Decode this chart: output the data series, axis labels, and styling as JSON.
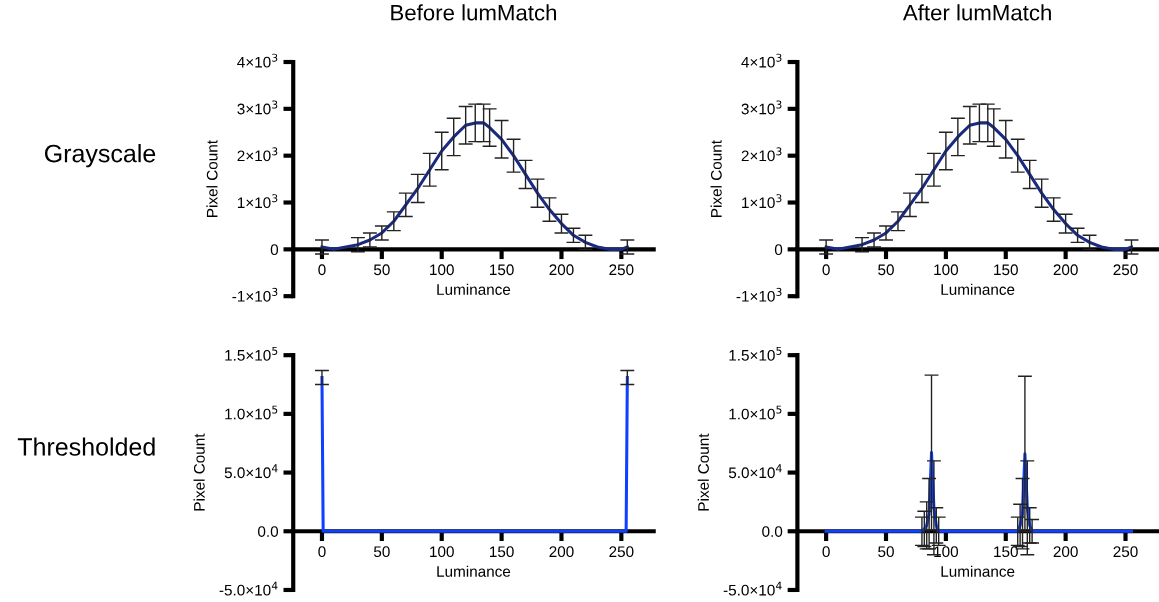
{
  "chart_data": [
    {
      "type": "line",
      "title": "Before lumMatch",
      "annotations": [
        "Grayscale"
      ],
      "xlabel": "Luminance",
      "ylabel": "Pixel Count",
      "xlim": [
        -24,
        277
      ],
      "xticks": [
        0,
        50,
        100,
        150,
        200,
        250
      ],
      "ylim": [
        -1000,
        4000
      ],
      "yticks": [
        {
          "value": -1000,
          "label": "-1×10$^{3}$"
        },
        0,
        {
          "value": 1000,
          "label": "1×10$^{3}$"
        },
        {
          "value": 2000,
          "label": "2×10$^{3}$"
        },
        {
          "value": 3000,
          "label": "3×10$^{3}$"
        },
        {
          "value": 4000,
          "label": "4×10$^{3}$"
        }
      ],
      "grid": false,
      "marker": "none",
      "line_style": "solid",
      "series": [
        {
          "color": "#1a2a80",
          "x": [
            0,
            10,
            20,
            30,
            40,
            50,
            60,
            70,
            80,
            90,
            100,
            110,
            120,
            128,
            135,
            140,
            150,
            160,
            170,
            180,
            190,
            200,
            210,
            220,
            230,
            240,
            250,
            255
          ],
          "values": [
            50,
            0,
            50,
            100,
            200,
            350,
            600,
            950,
            1300,
            1700,
            2100,
            2400,
            2650,
            2700,
            2700,
            2600,
            2350,
            2000,
            1600,
            1200,
            850,
            550,
            300,
            150,
            50,
            0,
            0,
            50
          ],
          "errors": [
            150,
            null,
            null,
            150,
            150,
            150,
            200,
            250,
            300,
            350,
            400,
            400,
            400,
            400,
            400,
            400,
            400,
            350,
            300,
            300,
            250,
            200,
            150,
            150,
            null,
            null,
            null,
            150
          ]
        }
      ]
    },
    {
      "type": "line",
      "title": "After lumMatch",
      "xlabel": "Luminance",
      "ylabel": "Pixel Count",
      "xlim": [
        -24,
        277
      ],
      "xticks": [
        0,
        50,
        100,
        150,
        200,
        250
      ],
      "ylim": [
        -1000,
        4000
      ],
      "yticks": [
        {
          "value": -1000,
          "label": "-1×10$^{3}$"
        },
        0,
        {
          "value": 1000,
          "label": "1×10$^{3}$"
        },
        {
          "value": 2000,
          "label": "2×10$^{3}$"
        },
        {
          "value": 3000,
          "label": "3×10$^{3}$"
        },
        {
          "value": 4000,
          "label": "4×10$^{3}$"
        }
      ],
      "grid": false,
      "marker": "none",
      "line_style": "solid",
      "series": [
        {
          "color": "#1a2a80",
          "x": [
            0,
            10,
            20,
            30,
            40,
            50,
            60,
            70,
            80,
            90,
            100,
            110,
            120,
            128,
            135,
            140,
            150,
            160,
            170,
            180,
            190,
            200,
            210,
            220,
            230,
            240,
            250,
            255
          ],
          "values": [
            50,
            0,
            50,
            100,
            200,
            350,
            600,
            950,
            1300,
            1700,
            2100,
            2400,
            2650,
            2700,
            2700,
            2600,
            2350,
            2000,
            1600,
            1200,
            850,
            550,
            300,
            150,
            50,
            0,
            0,
            50
          ],
          "errors": [
            150,
            null,
            null,
            150,
            150,
            150,
            200,
            250,
            300,
            350,
            400,
            400,
            400,
            400,
            400,
            400,
            400,
            350,
            300,
            300,
            250,
            200,
            150,
            150,
            null,
            null,
            null,
            150
          ]
        }
      ]
    },
    {
      "type": "line",
      "annotations": [
        "Thresholded"
      ],
      "xlabel": "Luminance",
      "ylabel": "Pixel Count",
      "xlim": [
        -24,
        277
      ],
      "xticks": [
        0,
        50,
        100,
        150,
        200,
        250
      ],
      "ylim": [
        -50000,
        150000
      ],
      "yticks": [
        {
          "value": -50000,
          "label": "-5.0×10$^{4}$"
        },
        {
          "value": 0,
          "label": "0.0"
        },
        {
          "value": 50000,
          "label": "5.0×10$^{4}$"
        },
        {
          "value": 100000,
          "label": "1.0×10$^{5}$"
        },
        {
          "value": 150000,
          "label": "1.5×10$^{5}$"
        }
      ],
      "grid": false,
      "marker": "none",
      "line_style": "solid",
      "series": [
        {
          "color": "#1040ff",
          "x": [
            0,
            1,
            50,
            100,
            150,
            200,
            254,
            255
          ],
          "values": [
            131000,
            0,
            0,
            0,
            0,
            0,
            0,
            131000
          ],
          "errors": [
            6000,
            null,
            null,
            null,
            null,
            null,
            null,
            6000
          ]
        }
      ]
    },
    {
      "type": "line",
      "xlabel": "Luminance",
      "ylabel": "Pixel Count",
      "xlim": [
        -24,
        277
      ],
      "xticks": [
        0,
        50,
        100,
        150,
        200,
        250
      ],
      "ylim": [
        -50000,
        150000
      ],
      "yticks": [
        {
          "value": -50000,
          "label": "-5.0×10$^{4}$"
        },
        {
          "value": 0,
          "label": "0.0"
        },
        {
          "value": 50000,
          "label": "5.0×10$^{4}$"
        },
        {
          "value": 100000,
          "label": "1.0×10$^{5}$"
        },
        {
          "value": 150000,
          "label": "1.5×10$^{5}$"
        }
      ],
      "grid": false,
      "marker": "none",
      "line_style": "solid",
      "series": [
        {
          "color": "#1040ff",
          "x": [
            0,
            50,
            80,
            82,
            84,
            86,
            88,
            90,
            92,
            94,
            96,
            120,
            158,
            160,
            162,
            164,
            166,
            168,
            170,
            172,
            200,
            255
          ],
          "values": [
            0,
            0,
            0,
            2000,
            5000,
            15000,
            67000,
            20000,
            5000,
            0,
            0,
            0,
            0,
            0,
            5000,
            15000,
            66000,
            20000,
            5000,
            0,
            0,
            0
          ],
          "errors": [
            null,
            null,
            12000,
            15000,
            20000,
            30000,
            66000,
            40000,
            15000,
            12000,
            null,
            null,
            null,
            12000,
            18000,
            30000,
            66000,
            40000,
            15000,
            10000,
            null,
            null
          ]
        }
      ]
    }
  ]
}
